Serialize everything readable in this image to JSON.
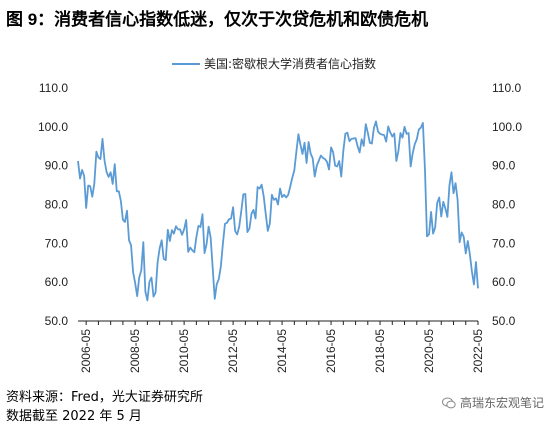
{
  "title": "图 9：消费者信心指数低迷，仅次于次贷危机和欧债危机",
  "source": "资料来源：Fred，光大证券研究所",
  "date_note": "数据截至 2022 年 5 月",
  "watermark": "高瑞东宏观笔记",
  "watermark_icon": "wechat-icon",
  "chart_data": {
    "type": "line",
    "title": "",
    "xlabel": "",
    "ylabel": "",
    "ylim": [
      50,
      110
    ],
    "yticks": [
      "50.0",
      "60.0",
      "70.0",
      "80.0",
      "90.0",
      "100.0",
      "110.0"
    ],
    "xticks": [
      "2006-05",
      "2008-05",
      "2010-05",
      "2012-05",
      "2014-05",
      "2016-05",
      "2018-05",
      "2020-05",
      "2022-05"
    ],
    "legend": "top-center",
    "grid": false,
    "series": [
      {
        "name": "美国:密歇根大学消费者信心指数",
        "color": "#5b9bd5",
        "start": "2006-01",
        "values": [
          91.2,
          86.7,
          88.9,
          87.4,
          79.1,
          84.9,
          84.7,
          82.0,
          85.4,
          93.6,
          92.1,
          91.7,
          96.9,
          91.3,
          88.4,
          87.1,
          88.3,
          85.3,
          90.4,
          83.4,
          83.4,
          80.9,
          76.1,
          75.5,
          78.4,
          70.8,
          69.5,
          62.6,
          59.8,
          56.4,
          61.2,
          63.0,
          70.3,
          57.6,
          55.3,
          60.1,
          61.2,
          56.3,
          57.3,
          65.1,
          68.7,
          70.8,
          66.0,
          65.7,
          73.5,
          70.6,
          73.4,
          72.5,
          74.4,
          73.6,
          73.6,
          72.2,
          73.6,
          76.0,
          67.8,
          68.9,
          68.2,
          67.7,
          71.6,
          74.5,
          74.2,
          77.5,
          67.5,
          69.8,
          74.3,
          71.5,
          63.7,
          55.7,
          59.5,
          60.8,
          64.1,
          69.9,
          75.0,
          75.3,
          76.2,
          76.4,
          79.3,
          73.2,
          72.3,
          74.3,
          78.3,
          82.6,
          82.7,
          72.9,
          73.8,
          77.6,
          78.6,
          76.4,
          84.5,
          84.1,
          85.1,
          82.1,
          77.5,
          73.2,
          75.1,
          82.5,
          81.2,
          81.6,
          80.0,
          84.1,
          81.9,
          82.5,
          81.8,
          82.5,
          84.6,
          86.9,
          88.8,
          93.6,
          98.1,
          95.4,
          93.0,
          95.9,
          90.7,
          96.1,
          93.1,
          91.9,
          87.2,
          90.0,
          91.3,
          92.6,
          92.0,
          91.7,
          91.0,
          89.0,
          94.7,
          93.5,
          90.0,
          89.8,
          91.2,
          87.2,
          93.8,
          98.2,
          98.5,
          96.3,
          96.9,
          97.0,
          97.1,
          95.0,
          93.4,
          96.8,
          95.1,
          100.7,
          98.5,
          95.9,
          95.7,
          99.7,
          101.4,
          98.8,
          98.2,
          98.0,
          97.9,
          96.2,
          100.1,
          98.6,
          97.5,
          98.3,
          91.2,
          93.8,
          98.4,
          97.2,
          100.0,
          98.2,
          98.4,
          89.8,
          93.2,
          95.5,
          96.8,
          99.3,
          99.8,
          101.0,
          89.1,
          71.8,
          72.3,
          78.1,
          72.5,
          74.1,
          80.4,
          81.8,
          76.9,
          80.7,
          79.0,
          76.8,
          84.9,
          88.3,
          82.9,
          85.5,
          81.2,
          70.3,
          72.8,
          71.7,
          67.4,
          70.6,
          67.2,
          62.8,
          59.4,
          65.2,
          58.4
        ]
      }
    ]
  }
}
